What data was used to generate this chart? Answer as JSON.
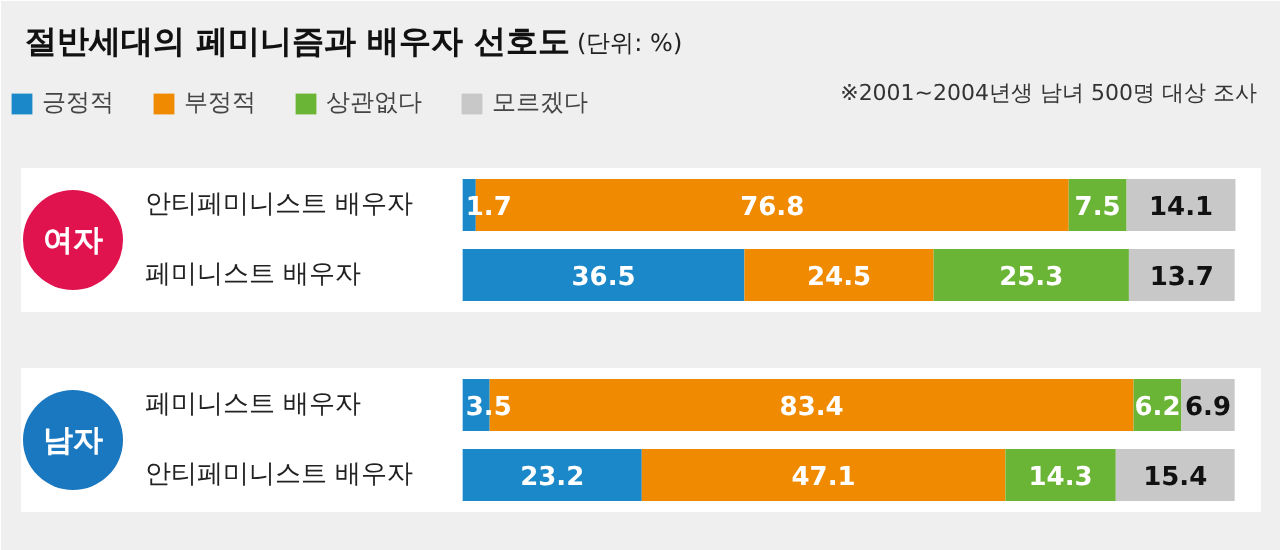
{
  "chart_data": {
    "type": "bar",
    "orientation": "horizontal",
    "stacked": true,
    "title": "절반세대의 페미니즘과 배우자 선호도",
    "subtitle": "(단위: %)",
    "categories": [
      "안티페미니스트 배우자",
      "페미니스트 배우자",
      "페미니스트 배우자",
      "안티페미니스트 배우자"
    ],
    "series": [
      {
        "name": "긍정적",
        "color": "#1b88c9",
        "values": [
          1.7,
          36.5,
          3.5,
          23.2
        ]
      },
      {
        "name": "부정적",
        "color": "#f08a00",
        "values": [
          76.8,
          24.5,
          83.4,
          47.1
        ]
      },
      {
        "name": "상관없다",
        "color": "#6bb536",
        "values": [
          7.5,
          25.3,
          6.2,
          14.3
        ]
      },
      {
        "name": "모르겠다",
        "color": "#c8c8c8",
        "values": [
          14.1,
          13.7,
          6.9,
          15.4
        ]
      }
    ],
    "annotations": [
      "※2001~2004년생 남녀 500명 대상 조사",
      "여자",
      "남자"
    ],
    "data_labels": true,
    "legend": "top left",
    "grid": false
  }
}
